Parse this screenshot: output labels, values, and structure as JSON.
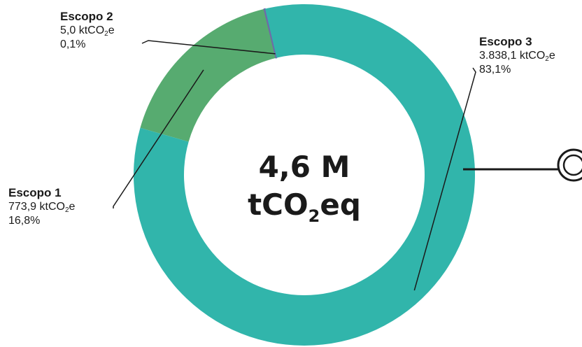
{
  "chart_data": {
    "type": "pie",
    "variant": "donut",
    "categories": [
      "Escopo 1",
      "Escopo 2",
      "Escopo 3"
    ],
    "values": [
      773.9,
      5.0,
      3838.1
    ],
    "value_unit_prefix": "ktCO",
    "value_unit_sub": "2",
    "value_unit_suffix": "e",
    "value_texts": [
      "773,9",
      "5,0",
      "3.838,1"
    ],
    "percents": [
      "16,8%",
      "0,1%",
      "83,1%"
    ],
    "colors": [
      "#57ab70",
      "#6f6aa8",
      "#31b5ab"
    ],
    "center_total": {
      "line1": "4,6 M",
      "line2_prefix": "tCO",
      "line2_sub": "2",
      "line2_suffix": "eq"
    },
    "legend": "none"
  }
}
